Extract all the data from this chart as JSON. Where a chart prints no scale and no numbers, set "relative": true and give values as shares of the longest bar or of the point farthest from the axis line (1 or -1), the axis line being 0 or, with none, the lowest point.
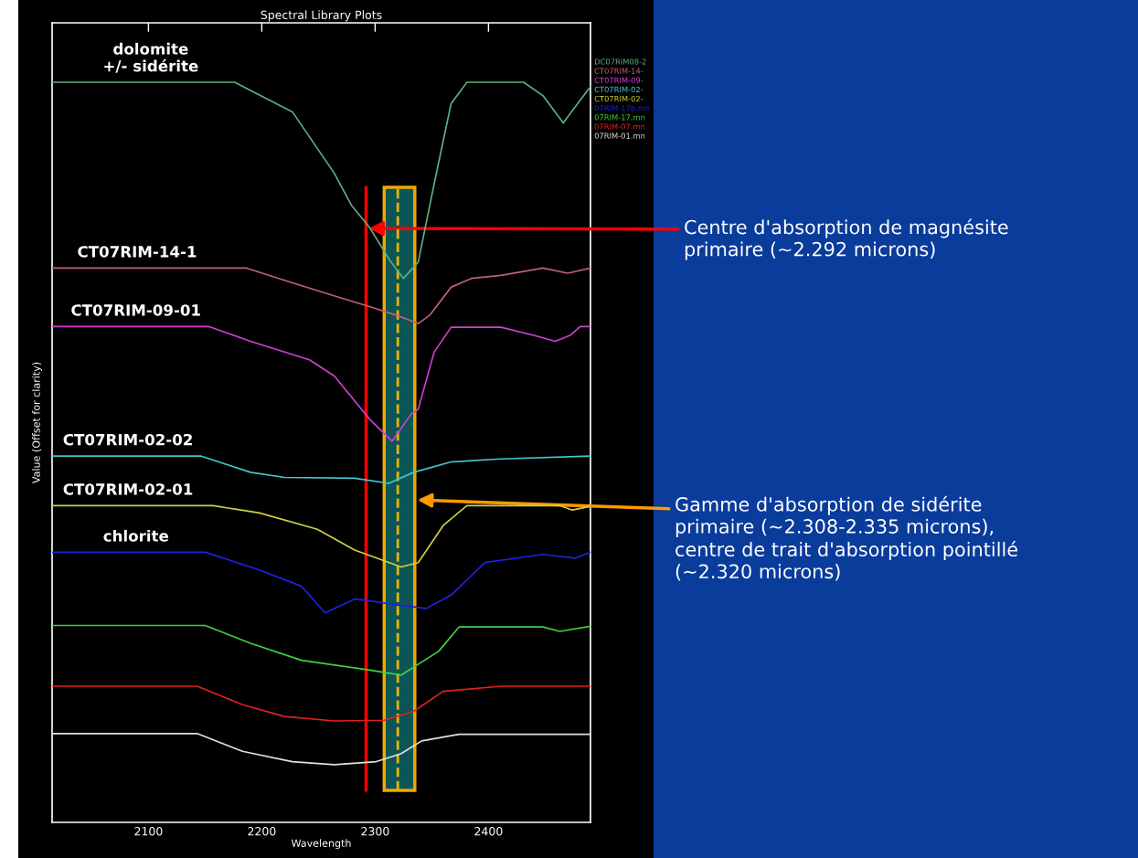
{
  "chart_data": {
    "type": "line",
    "relative": true,
    "title": "Spectral Library Plots",
    "xlabel": "Wavelength",
    "ylabel": "Value (Offset for clarity)",
    "xlim": [
      2015,
      2490
    ],
    "xticks": [
      2100,
      2200,
      2300,
      2400
    ],
    "grid": false,
    "legend": "top right",
    "marker": "none",
    "line_style": "solid",
    "series": [
      {
        "name": "DC07RIM08-2",
        "color": "#5fae7e",
        "x": [
          2015,
          2176,
          2227,
          2264,
          2279,
          2295,
          2314,
          2325,
          2338,
          2352,
          2367,
          2381,
          2431,
          2448,
          2466,
          2481,
          2490
        ],
        "values": [
          1.0,
          1.0,
          0.96,
          0.877,
          0.834,
          0.804,
          0.757,
          0.735,
          0.757,
          0.862,
          0.971,
          1.0,
          1.0,
          0.982,
          0.945,
          0.976,
          0.994
        ]
      },
      {
        "name": "CT07RIM-14-",
        "color": "#c0607a",
        "x": [
          2015,
          2186,
          2227,
          2271,
          2295,
          2319,
          2338,
          2348,
          2367,
          2385,
          2411,
          2448,
          2470,
          2490
        ],
        "values": [
          0.749,
          0.749,
          0.729,
          0.708,
          0.697,
          0.685,
          0.674,
          0.685,
          0.723,
          0.735,
          0.739,
          0.749,
          0.742,
          0.749
        ]
      },
      {
        "name": "CT07RIM-09-",
        "color": "#d040d0",
        "x": [
          2015,
          2153,
          2190,
          2242,
          2264,
          2295,
          2315,
          2332,
          2338,
          2352,
          2367,
          2411,
          2440,
          2459,
          2472,
          2481,
          2490
        ],
        "values": [
          0.67,
          0.67,
          0.65,
          0.625,
          0.603,
          0.545,
          0.515,
          0.552,
          0.558,
          0.635,
          0.669,
          0.669,
          0.658,
          0.65,
          0.658,
          0.67,
          0.67
        ]
      },
      {
        "name": "CT07RIM-02-",
        "color": "#40c8d0",
        "x": [
          2015,
          2146,
          2190,
          2220,
          2282,
          2312,
          2334,
          2367,
          2411,
          2490
        ],
        "values": [
          0.495,
          0.495,
          0.473,
          0.466,
          0.465,
          0.458,
          0.473,
          0.487,
          0.491,
          0.495
        ]
      },
      {
        "name": "CT07RIM-02-",
        "color": "#d0d040",
        "x": [
          2015,
          2157,
          2198,
          2249,
          2282,
          2323,
          2338,
          2360,
          2381,
          2463,
          2474,
          2490
        ],
        "values": [
          0.428,
          0.428,
          0.418,
          0.396,
          0.368,
          0.345,
          0.351,
          0.401,
          0.428,
          0.428,
          0.422,
          0.427
        ]
      },
      {
        "name": "07RIM-17b.mn",
        "color": "#2020e0",
        "x": [
          2015,
          2150,
          2198,
          2235,
          2256,
          2282,
          2319,
          2345,
          2367,
          2397,
          2448,
          2477,
          2490
        ],
        "values": [
          0.365,
          0.365,
          0.341,
          0.319,
          0.283,
          0.302,
          0.294,
          0.289,
          0.307,
          0.351,
          0.362,
          0.357,
          0.365
        ]
      },
      {
        "name": "07RIM-17.mn",
        "color": "#40d040",
        "x": [
          2015,
          2150,
          2190,
          2235,
          2294,
          2323,
          2356,
          2374,
          2448,
          2463,
          2490
        ],
        "values": [
          0.266,
          0.266,
          0.242,
          0.219,
          0.206,
          0.199,
          0.231,
          0.264,
          0.264,
          0.258,
          0.265
        ]
      },
      {
        "name": "07RIM-07.mn",
        "color": "#e02020",
        "x": [
          2015,
          2143,
          2183,
          2220,
          2264,
          2308,
          2334,
          2360,
          2411,
          2490
        ],
        "values": [
          0.184,
          0.184,
          0.159,
          0.143,
          0.137,
          0.138,
          0.15,
          0.177,
          0.184,
          0.184
        ]
      },
      {
        "name": "07RIM-01.mn",
        "color": "#e0e0e0",
        "x": [
          2015,
          2143,
          2183,
          2227,
          2264,
          2301,
          2323,
          2341,
          2374,
          2490
        ],
        "values": [
          0.12,
          0.12,
          0.096,
          0.082,
          0.078,
          0.082,
          0.093,
          0.11,
          0.119,
          0.119
        ]
      }
    ],
    "annotations": [
      {
        "text": "dolomite\n+/- sidérite",
        "x": 2102,
        "y": 1.0
      },
      {
        "text": "CT07RIM-14-1",
        "x": 2090,
        "y": 0.749
      },
      {
        "text": "CT07RIM-09-01",
        "x": 2089,
        "y": 0.67
      },
      {
        "text": "CT07RIM-02-02",
        "x": 2082,
        "y": 0.495
      },
      {
        "text": "CT07RIM-02-01",
        "x": 2082,
        "y": 0.428
      },
      {
        "text": "chlorite",
        "x": 2089,
        "y": 0.365
      }
    ],
    "ref_lines": [
      {
        "axis": "x",
        "value": 2292,
        "label": "Centre d'absorption de magnésite\nprimaire (~2.292 microns)",
        "color": "#ff0000",
        "line_style": "solid"
      },
      {
        "axis": "x",
        "value": 2320,
        "color": "#f0b000",
        "line_style": "dashed"
      }
    ],
    "bands": [
      {
        "axis": "x",
        "from": 2308,
        "to": 2335,
        "label": "Gamme d'absorption de sidérite\nprimaire (~2.308-2.335 microns),\ncentre de trait d'absorption pointillé\n(~2.320 microns)",
        "color": "#0b5555"
      }
    ]
  }
}
